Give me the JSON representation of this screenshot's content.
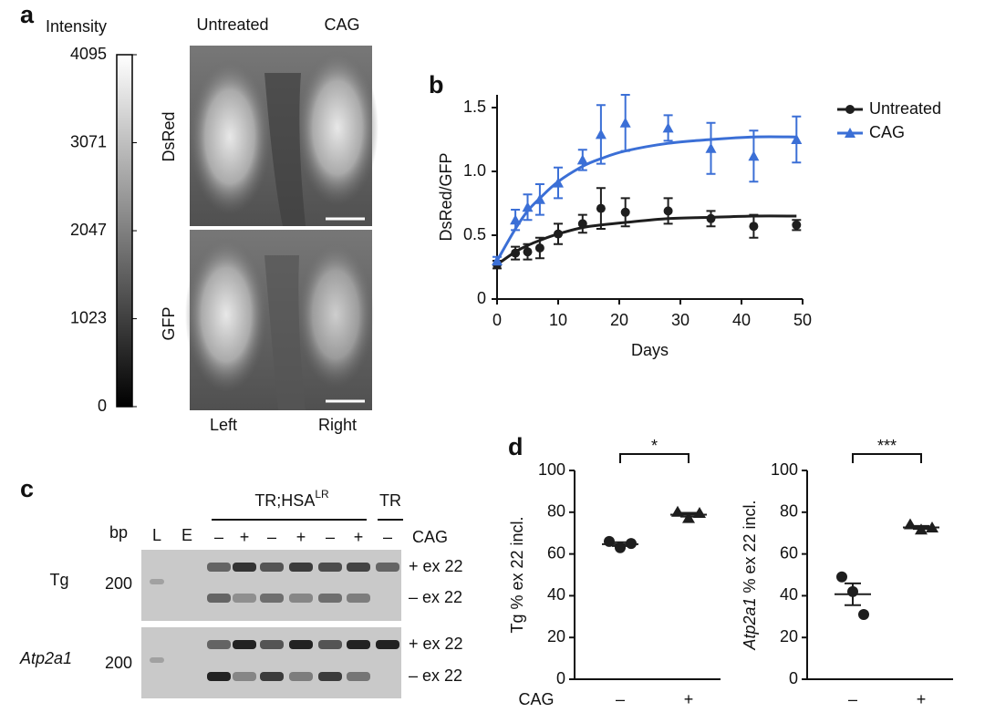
{
  "panel_a": {
    "label": "a",
    "colorbar_title": "Intensity",
    "colorbar_lim": [
      0,
      4095
    ],
    "colorbar_ticks": [
      4095,
      3071,
      2047,
      1023,
      0
    ],
    "columns": [
      "Untreated",
      "CAG"
    ],
    "rows": [
      "DsRed",
      "GFP"
    ],
    "sides": [
      "Left",
      "Right"
    ]
  },
  "chart_data": [
    {
      "type": "line",
      "label": "b",
      "xlabel": "Days",
      "ylabel": "DsRed/GFP",
      "x": [
        0,
        3,
        5,
        7,
        10,
        14,
        17,
        21,
        28,
        35,
        42,
        49
      ],
      "xlim": [
        0,
        50
      ],
      "xticks": [
        0,
        10,
        20,
        30,
        40,
        50
      ],
      "ylim": [
        0,
        1.6
      ],
      "yticks": [
        0,
        0.5,
        {
          "value": 1,
          "label": "1.0"
        },
        1.5
      ],
      "legend": "upper right",
      "series": [
        {
          "name": "Untreated",
          "color": "#1e1e1e",
          "marker": "circle",
          "values": [
            0.27,
            0.36,
            0.37,
            0.4,
            0.51,
            0.59,
            0.71,
            0.68,
            0.69,
            0.63,
            0.57,
            0.58
          ],
          "errors": [
            0.03,
            0.05,
            0.06,
            0.08,
            0.08,
            0.07,
            0.16,
            0.11,
            0.1,
            0.06,
            0.09,
            0.04
          ],
          "fit": [
            0.27,
            0.37,
            0.42,
            0.46,
            0.51,
            0.56,
            0.58,
            0.6,
            0.63,
            0.64,
            0.65,
            0.65
          ]
        },
        {
          "name": "CAG",
          "color": "#3b6fd6",
          "marker": "triangle",
          "values": [
            0.3,
            0.62,
            0.72,
            0.78,
            0.91,
            1.09,
            1.29,
            1.38,
            1.34,
            1.18,
            1.12,
            1.25
          ],
          "errors": [
            0.03,
            0.08,
            0.1,
            0.12,
            0.12,
            0.08,
            0.23,
            0.22,
            0.1,
            0.2,
            0.2,
            0.18
          ],
          "fit": [
            0.3,
            0.55,
            0.69,
            0.79,
            0.92,
            1.04,
            1.1,
            1.16,
            1.22,
            1.25,
            1.27,
            1.27
          ]
        }
      ]
    },
    {
      "type": "dot",
      "label": "d",
      "ylabel": "Tg % ex 22 incl.",
      "xlabel": "CAG",
      "categories": [
        "–",
        "+"
      ],
      "ylim": [
        0,
        100
      ],
      "yticks": [
        0,
        20,
        40,
        60,
        80,
        100
      ],
      "points": [
        [
          66,
          63,
          65
        ],
        [
          80,
          77,
          79.5
        ]
      ],
      "means": [
        64.7,
        78.8
      ],
      "errors": [
        0.9,
        0.9
      ],
      "significance": "*",
      "color": "#1e1e1e"
    },
    {
      "type": "dot",
      "ylabel_gene": "Atp2a1",
      "ylabel": "% ex 22 incl.",
      "categories": [
        "–",
        "+"
      ],
      "ylim": [
        0,
        100
      ],
      "yticks": [
        0,
        20,
        40,
        60,
        80,
        100
      ],
      "points": [
        [
          49,
          42,
          31
        ],
        [
          74,
          71.5,
          72.5
        ]
      ],
      "means": [
        40.7,
        72.7
      ],
      "errors": [
        5.2,
        0.7
      ],
      "significance": "***",
      "color": "#1e1e1e"
    }
  ],
  "panel_c": {
    "label": "c",
    "group": "TR;HSA",
    "group_sup": "LR",
    "control": "TR",
    "bp": "bp",
    "ladder": "L",
    "empty": "E",
    "lanes": [
      "–",
      "+",
      "–",
      "+",
      "–",
      "+",
      "–"
    ],
    "treatment": "CAG",
    "genes": [
      "Tg",
      "Atp2a1"
    ],
    "size": "200",
    "bands": [
      "+ ex 22",
      "– ex 22"
    ]
  }
}
